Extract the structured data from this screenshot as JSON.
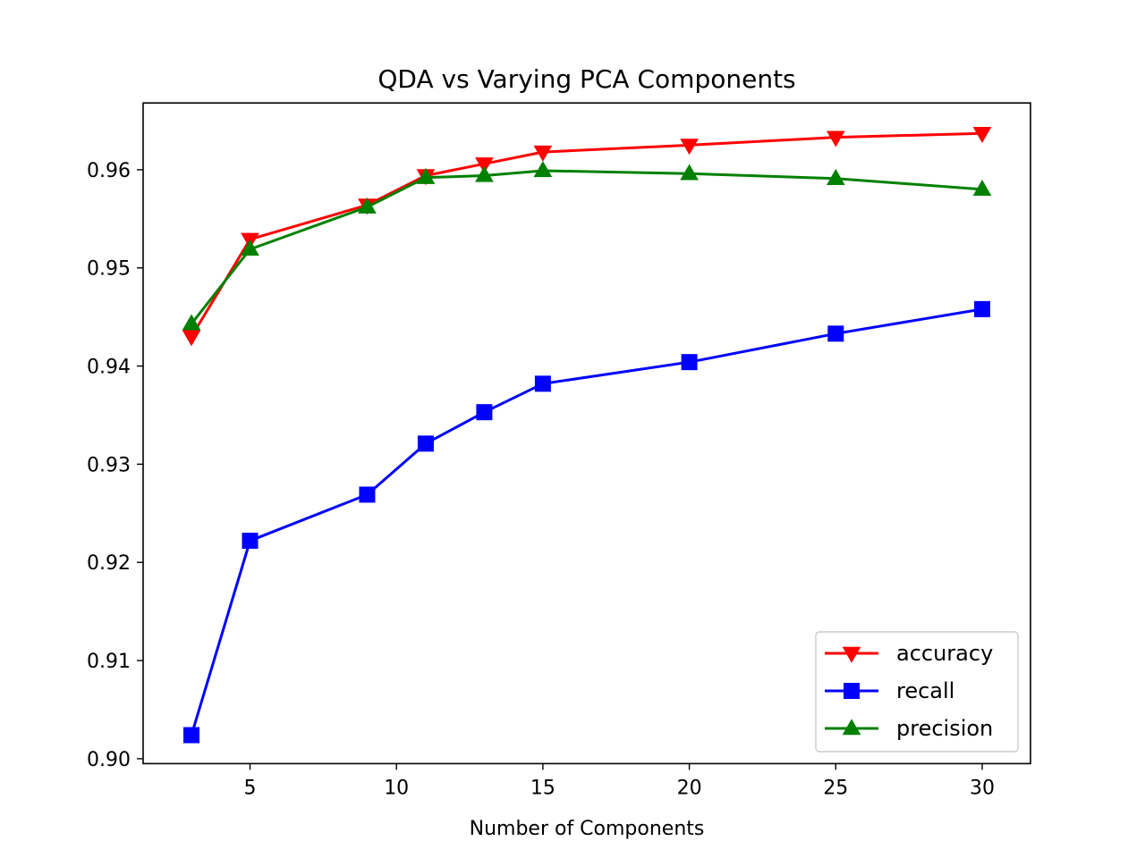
{
  "chart_data": {
    "type": "line",
    "title": "QDA vs Varying PCA Components",
    "xlabel": "Number of Components",
    "ylabel": "",
    "x": [
      3,
      5,
      9,
      11,
      13,
      15,
      20,
      25,
      30
    ],
    "xlim": [
      1.35,
      31.65
    ],
    "ylim": [
      0.8995,
      0.9668
    ],
    "xticks": [
      5,
      10,
      15,
      20,
      25,
      30
    ],
    "xtick_labels": [
      "5",
      "10",
      "15",
      "20",
      "25",
      "30"
    ],
    "yticks": [
      0.9,
      0.91,
      0.92,
      0.93,
      0.94,
      0.95,
      0.96
    ],
    "ytick_labels": [
      "0.90",
      "0.91",
      "0.92",
      "0.93",
      "0.94",
      "0.95",
      "0.96"
    ],
    "grid": false,
    "legend_position": "lower right",
    "series": [
      {
        "name": "accuracy",
        "color": "#ff0000",
        "marker": "triangle-down",
        "values": [
          0.943,
          0.9529,
          0.9564,
          0.9594,
          0.9606,
          0.9618,
          0.9625,
          0.9633,
          0.9637
        ]
      },
      {
        "name": "recall",
        "color": "#0000ff",
        "marker": "square",
        "values": [
          0.9024,
          0.9222,
          0.9269,
          0.9321,
          0.9353,
          0.9382,
          0.9404,
          0.9433,
          0.9458
        ]
      },
      {
        "name": "precision",
        "color": "#008000",
        "marker": "triangle-up",
        "values": [
          0.9443,
          0.9519,
          0.9562,
          0.9592,
          0.9594,
          0.9599,
          0.9596,
          0.9591,
          0.958
        ]
      }
    ]
  }
}
